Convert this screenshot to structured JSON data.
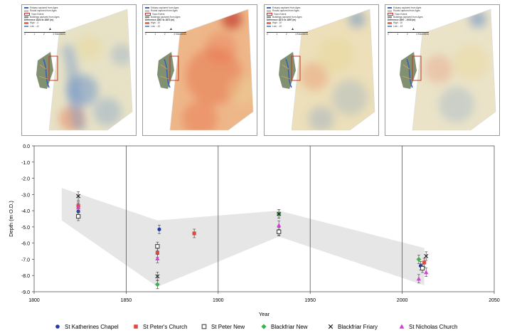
{
  "maps": [
    {
      "id": "map1",
      "legend_lines": [
        "Estuary captured from Ages",
        "Roads captured from Ages",
        "Town Extent",
        "Buildings captured from Ages"
      ],
      "difference_label": "Difference 1824 to 1867 (m)",
      "high_label": "High : -4",
      "low_label": "Low : -11",
      "scale_ticks": [
        "0",
        "1",
        "2",
        "4 Kilometres"
      ],
      "north": "▲"
    },
    {
      "id": "map2",
      "legend_lines": [
        "Estuary captured from Ages",
        "Roads captured from Ages",
        "Town Extent",
        "Buildings captured from Ages"
      ],
      "difference_label": "Difference 1867 to 1872 (m)",
      "high_label": "High : 10",
      "low_label": "Low : -10",
      "scale_ticks": [
        "0",
        "1",
        "2",
        "4 Kilometres"
      ],
      "north": "▲"
    },
    {
      "id": "map3",
      "legend_lines": [
        "Estuary captured from Ages",
        "Roads captured from Ages",
        "Town Extent",
        "Buildings captured from Ages"
      ],
      "difference_label": "Difference 1872 to 1897 (m)",
      "high_label": "High : 10",
      "low_label": "Low : -10",
      "scale_ticks": [
        "0",
        "1",
        "2",
        "4 Kilometres"
      ],
      "north": "▲"
    },
    {
      "id": "map4",
      "legend_lines": [
        "Estuary captured from Ages",
        "Roads captured from Ages",
        "Town Extent",
        "Buildings captured from Ages"
      ],
      "difference_label": "Difference 1897 - 1933 (m)",
      "high_label": "High : 10",
      "low_label": "Low : -13",
      "scale_ticks": [
        "0",
        "1",
        "2",
        "4 Kilometres"
      ],
      "north": "▲"
    }
  ],
  "colors": {
    "high": "#e8704a",
    "low": "#6f93c8",
    "town_extent": "#c0392b",
    "band": "#e6e6e6"
  },
  "chart_data": {
    "type": "scatter",
    "xlabel": "Year",
    "ylabel": "Depth (m O.D.)",
    "xlim": [
      1800,
      2050
    ],
    "ylim": [
      -9.0,
      0.0
    ],
    "xticks": [
      1800,
      1850,
      1900,
      1950,
      2000,
      2050
    ],
    "yticks": [
      0.0,
      -1.0,
      -2.0,
      -3.0,
      -4.0,
      -5.0,
      -6.0,
      -7.0,
      -8.0,
      -9.0
    ],
    "xtick_labels": [
      "1800",
      "1850",
      "1900",
      "1950",
      "2000",
      "2050"
    ],
    "ytick_labels": [
      "0.0",
      "-1.0",
      "-2.0",
      "-3.0",
      "-4.0",
      "-5.0",
      "-6.0",
      "-7.0",
      "-8.0",
      "-9.0"
    ],
    "vertical_gridlines": [
      1850,
      1900,
      1950,
      2000
    ],
    "band_upper": [
      [
        1815,
        -2.6
      ],
      [
        1867,
        -4.6
      ],
      [
        1933,
        -4.0
      ],
      [
        2012,
        -6.3
      ]
    ],
    "band_lower": [
      [
        2012,
        -8.6
      ],
      [
        1933,
        -5.6
      ],
      [
        1867,
        -8.7
      ],
      [
        1815,
        -4.6
      ]
    ],
    "legend_position": "bottom",
    "series": [
      {
        "name": "St Katherines Chapel",
        "marker": "circle",
        "color": "#1f3aa8",
        "points": [
          {
            "x": 1824,
            "y": -4.05
          },
          {
            "x": 1868,
            "y": -5.15
          },
          {
            "x": 1933,
            "y": -5.25
          },
          {
            "x": 2010,
            "y": -7.4
          }
        ]
      },
      {
        "name": "St Peter's Church",
        "marker": "square",
        "color": "#e04a3f",
        "points": [
          {
            "x": 1824,
            "y": -3.7
          },
          {
            "x": 1867,
            "y": -6.6
          },
          {
            "x": 1887,
            "y": -5.4
          },
          {
            "x": 2012,
            "y": -7.2
          }
        ]
      },
      {
        "name": "St Peter New",
        "marker": "open-square",
        "color": "#444444",
        "points": [
          {
            "x": 1824,
            "y": -4.35
          },
          {
            "x": 1867,
            "y": -6.2
          },
          {
            "x": 1933,
            "y": -5.3
          },
          {
            "x": 2011,
            "y": -7.55
          }
        ]
      },
      {
        "name": "Blackfriar New",
        "marker": "diamond",
        "color": "#3cb44b",
        "points": [
          {
            "x": 1867,
            "y": -8.55
          },
          {
            "x": 1933,
            "y": -4.2
          },
          {
            "x": 2009,
            "y": -7.0
          }
        ]
      },
      {
        "name": "Blackfriar Friary",
        "marker": "x",
        "color": "#222222",
        "points": [
          {
            "x": 1824,
            "y": -3.1
          },
          {
            "x": 1867,
            "y": -8.05
          },
          {
            "x": 1933,
            "y": -4.2
          },
          {
            "x": 2013,
            "y": -6.8
          }
        ]
      },
      {
        "name": "St Nicholas Church",
        "marker": "triangle",
        "color": "#d63fd6",
        "points": [
          {
            "x": 1824,
            "y": -3.8
          },
          {
            "x": 1867,
            "y": -6.95
          },
          {
            "x": 1933,
            "y": -4.9
          },
          {
            "x": 2009,
            "y": -8.2
          },
          {
            "x": 2013,
            "y": -7.8
          }
        ]
      }
    ]
  }
}
